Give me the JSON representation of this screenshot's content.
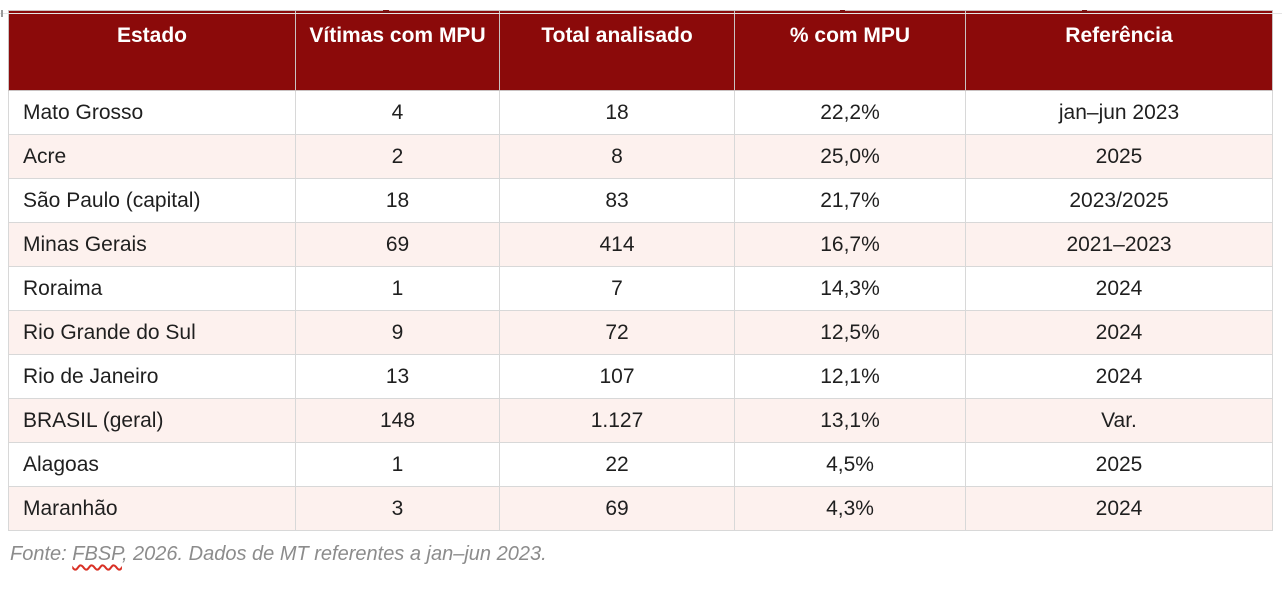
{
  "table": {
    "columns": [
      "Estado",
      "Vítimas com MPU",
      "Total analisado",
      "% com MPU",
      "Referência"
    ],
    "rows": [
      [
        "Mato Grosso",
        "4",
        "18",
        "22,2%",
        "jan–jun 2023"
      ],
      [
        "Acre",
        "2",
        "8",
        "25,0%",
        "2025"
      ],
      [
        "São Paulo (capital)",
        "18",
        "83",
        "21,7%",
        "2023/2025"
      ],
      [
        "Minas Gerais",
        "69",
        "414",
        "16,7%",
        "2021–2023"
      ],
      [
        "Roraima",
        "1",
        "7",
        "14,3%",
        "2024"
      ],
      [
        "Rio Grande do Sul",
        "9",
        "72",
        "12,5%",
        "2024"
      ],
      [
        "Rio de Janeiro",
        "13",
        "107",
        "12,1%",
        "2024"
      ],
      [
        "BRASIL (geral)",
        "148",
        "1.127",
        "13,1%",
        "Var."
      ],
      [
        "Alagoas",
        "1",
        "22",
        "4,5%",
        "2025"
      ],
      [
        "Maranhão",
        "3",
        "69",
        "4,3%",
        "2024"
      ]
    ]
  },
  "footer": {
    "prefix": "Fonte: ",
    "source": "FBSP",
    "rest": ", 2026. Dados de MT referentes a jan–jun 2023."
  },
  "colors": {
    "header_bg": "#8b0a0a",
    "stripe_bg": "#fdf1ee",
    "cell_border": "#d8d8d8",
    "footer_text": "#8c8c8c",
    "spellcheck_underline": "#d93025"
  }
}
